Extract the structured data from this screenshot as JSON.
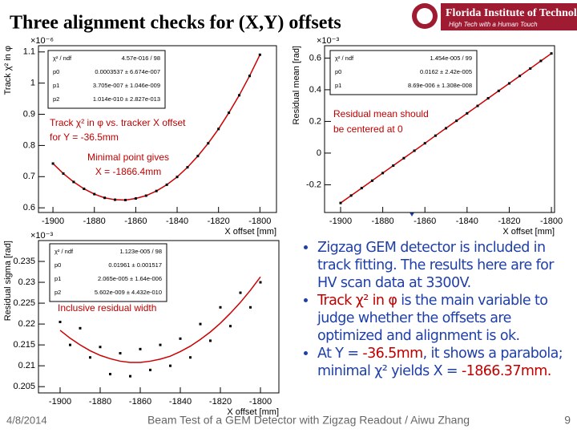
{
  "slide": {
    "title": "Three alignment checks for (X,Y) offsets",
    "logo": {
      "name": "Florida Institute of Technology",
      "tagline": "High Tech with a Human Touch"
    },
    "bullets": [
      [
        {
          "text": "Zigzag GEM detector is included in track fitting. The results here are for HV scan data at 3300V."
        }
      ],
      [
        {
          "text": "Track χ² in φ",
          "color": "#c00000"
        },
        {
          "text": " is the main variable to judge whether the offsets are optimized and alignment is ok."
        }
      ],
      [
        {
          "text": "At Y = "
        },
        {
          "text": "-36.5mm",
          "color": "#c00000"
        },
        {
          "text": ", it shows a parabola; minimal χ² yields X = "
        },
        {
          "text": "-1866.37mm.",
          "color": "#c00000"
        }
      ]
    ],
    "footer": {
      "date": "4/8/2014",
      "center": "Beam Test of a GEM Detector with Zigzag Readout / Aiwu Zhang",
      "page": "9"
    }
  },
  "chart_data": [
    {
      "type": "scatter",
      "x_label": "X offset [mm]",
      "y_label": "Track χ² in φ",
      "y_multiplier": "×10⁻⁶",
      "x": [
        -1900,
        -1895,
        -1890,
        -1885,
        -1880,
        -1875,
        -1870,
        -1865,
        -1860,
        -1855,
        -1850,
        -1845,
        -1840,
        -1835,
        -1830,
        -1825,
        -1820,
        -1815,
        -1810,
        -1805,
        -1800
      ],
      "series": [
        {
          "color": "#000000",
          "line_color": "#cc0000",
          "mode": "markers+line",
          "values": [
            0.742,
            0.71,
            0.683,
            0.661,
            0.644,
            0.632,
            0.626,
            0.625,
            0.63,
            0.639,
            0.654,
            0.674,
            0.699,
            0.73,
            0.766,
            0.807,
            0.853,
            0.905,
            0.961,
            1.023,
            1.091
          ]
        }
      ],
      "xlim": [
        -1907,
        -1792
      ],
      "ylim": [
        0.585,
        1.12
      ],
      "xticks": [
        -1900,
        -1880,
        -1860,
        -1840,
        -1820,
        -1800
      ],
      "yticks": [
        0.6,
        0.7,
        0.8,
        0.9,
        1,
        1.1
      ],
      "stats": [
        [
          "χ² / ndf",
          "4.57e-016 / 98"
        ],
        [
          "p0",
          "0.0003537 ± 6.674e-007"
        ],
        [
          "p1",
          "3.705e-007 ± 1.046e-009"
        ],
        [
          "p2",
          "1.014e-010 ± 2.827e-013"
        ]
      ],
      "annotations": [
        "Track χ² in φ vs. tracker X offset",
        "for Y = -36.5mm",
        "Minimal point gives",
        "X = -1866.4mm"
      ]
    },
    {
      "type": "scatter",
      "x_label": "X offset [mm]",
      "y_label": "Residual mean [rad]",
      "y_multiplier": "×10⁻³",
      "x": [
        -1900,
        -1895,
        -1890,
        -1885,
        -1880,
        -1875,
        -1870,
        -1865,
        -1860,
        -1855,
        -1850,
        -1845,
        -1840,
        -1835,
        -1830,
        -1825,
        -1820,
        -1815,
        -1810,
        -1805,
        -1800
      ],
      "series": [
        {
          "color": "#000000",
          "line_color": "#cc0000",
          "mode": "markers+line",
          "values": [
            -0.315,
            -0.268,
            -0.221,
            -0.174,
            -0.126,
            -0.079,
            -0.032,
            0.015,
            0.062,
            0.11,
            0.157,
            0.204,
            0.251,
            0.298,
            0.346,
            0.393,
            0.44,
            0.487,
            0.534,
            0.582,
            0.629
          ]
        }
      ],
      "xlim": [
        -1907.6,
        -1798.5
      ],
      "ylim": [
        -0.375,
        0.678
      ],
      "xticks": [
        -1900,
        -1880,
        -1860,
        -1840,
        -1820,
        -1800
      ],
      "yticks": [
        -0.2,
        0,
        0.2,
        0.4,
        0.6
      ],
      "stats": [
        [
          "χ² / ndf",
          "1.454e-005 / 99"
        ],
        [
          "p0",
          "0.0162 ± 2.42e-005"
        ],
        [
          "p1",
          "8.69e-006 ± 1.308e-008"
        ]
      ],
      "annotations": [
        "Residual mean should",
        "be centered at 0"
      ]
    },
    {
      "type": "scatter",
      "x_label": "X offset [mm]",
      "y_label": "Residual sigma [rad]",
      "y_multiplier": "×10⁻³",
      "x": [
        -1900,
        -1895,
        -1890,
        -1885,
        -1880,
        -1875,
        -1870,
        -1865,
        -1860,
        -1855,
        -1850,
        -1845,
        -1840,
        -1835,
        -1830,
        -1825,
        -1820,
        -1815,
        -1810,
        -1805,
        -1800
      ],
      "series": [
        {
          "color": "#000000",
          "mode": "markers",
          "values": [
            0.2205,
            0.215,
            0.219,
            0.212,
            0.2145,
            0.208,
            0.213,
            0.2075,
            0.214,
            0.209,
            0.215,
            0.21,
            0.2165,
            0.212,
            0.22,
            0.216,
            0.224,
            0.2195,
            0.2275,
            0.224,
            0.23
          ]
        },
        {
          "color": "#cc0000",
          "mode": "line",
          "values": [
            0.2185,
            0.2166,
            0.215,
            0.2136,
            0.2125,
            0.2117,
            0.2111,
            0.2108,
            0.2108,
            0.2111,
            0.2116,
            0.2123,
            0.2134,
            0.2147,
            0.2163,
            0.2181,
            0.2202,
            0.2226,
            0.2252,
            0.2281,
            0.2313
          ]
        }
      ],
      "xlim": [
        -1910.8,
        -1790.8
      ],
      "ylim": [
        0.2035,
        0.24
      ],
      "xticks": [
        -1900,
        -1880,
        -1860,
        -1840,
        -1820,
        -1800
      ],
      "yticks": [
        0.205,
        0.21,
        0.215,
        0.22,
        0.225,
        0.23,
        0.235
      ],
      "stats": [
        [
          "χ² / ndf",
          "1.123e-005 / 98"
        ],
        [
          "p0",
          "0.01961 ± 0.001517"
        ],
        [
          "p1",
          "2.065e-005 ± 1.64e-006"
        ],
        [
          "p2",
          "5.602e-009 ± 4.432e-010"
        ]
      ],
      "annotations": [
        "Inclusive residual width"
      ]
    }
  ]
}
